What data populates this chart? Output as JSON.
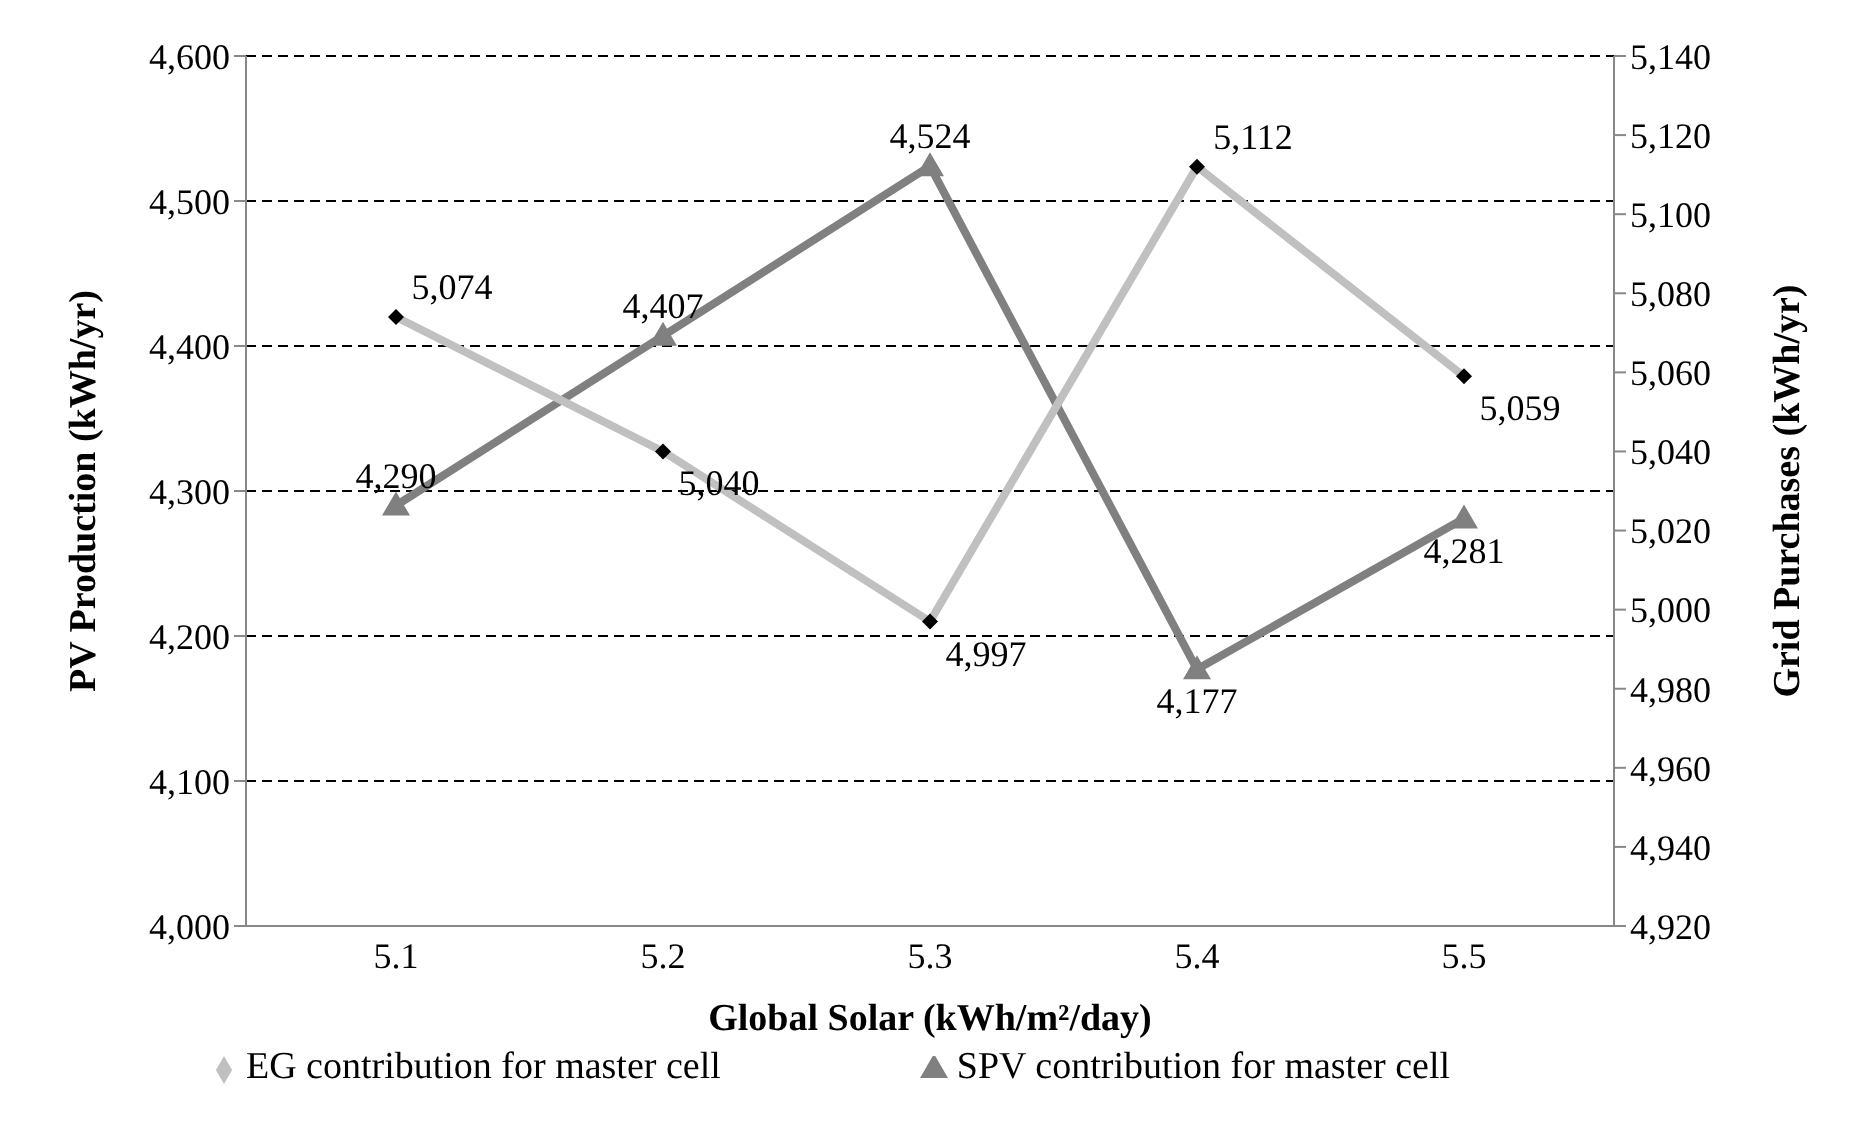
{
  "chart_data": {
    "type": "line",
    "xlabel": "Global Solar (kWh/m²/day)",
    "ylabel": "PV Production (kWh/yr)",
    "y2label": "Grid Purchases (kWh/yr)",
    "categories": [
      "5.1",
      "5.2",
      "5.3",
      "5.4",
      "5.5"
    ],
    "series": [
      {
        "name": "SPV contribution for master cell",
        "color": "#808080",
        "marker": "triangle",
        "values": [
          4290,
          4407,
          4524,
          4177,
          4281
        ],
        "value_labels": [
          "4,290",
          "4,407",
          "4,524",
          "4,177",
          "4,281"
        ]
      },
      {
        "name": "EG contribution for master cell",
        "color": "#c0c0c0",
        "marker": "diamond",
        "axis": "y2",
        "values": [
          5074,
          5040,
          4997,
          5112,
          5059
        ],
        "value_labels": [
          "5,074",
          "5,040",
          "4,997",
          "5,112",
          "5,059"
        ]
      }
    ],
    "ylim": [
      4000,
      4600
    ],
    "yticks": [
      {
        "value": 4000,
        "label": "4,000"
      },
      {
        "value": 4100,
        "label": "4,100"
      },
      {
        "value": 4200,
        "label": "4,200"
      },
      {
        "value": 4300,
        "label": "4,300"
      },
      {
        "value": 4400,
        "label": "4,400"
      },
      {
        "value": 4500,
        "label": "4,500"
      },
      {
        "value": 4600,
        "label": "4,600"
      }
    ],
    "y2lim": [
      4920,
      5140
    ],
    "y2ticks": [
      {
        "value": 4920,
        "label": "4,920"
      },
      {
        "value": 4940,
        "label": "4,940"
      },
      {
        "value": 4960,
        "label": "4,960"
      },
      {
        "value": 4980,
        "label": "4,980"
      },
      {
        "value": 5000,
        "label": "5,000"
      },
      {
        "value": 5020,
        "label": "5,020"
      },
      {
        "value": 5040,
        "label": "5,040"
      },
      {
        "value": 5060,
        "label": "5,060"
      },
      {
        "value": 5080,
        "label": "5,080"
      },
      {
        "value": 5100,
        "label": "5,100"
      },
      {
        "value": 5120,
        "label": "5,120"
      },
      {
        "value": 5140,
        "label": "5,140"
      }
    ],
    "grid": "y",
    "legend": "bottom",
    "line_style": "solid"
  }
}
